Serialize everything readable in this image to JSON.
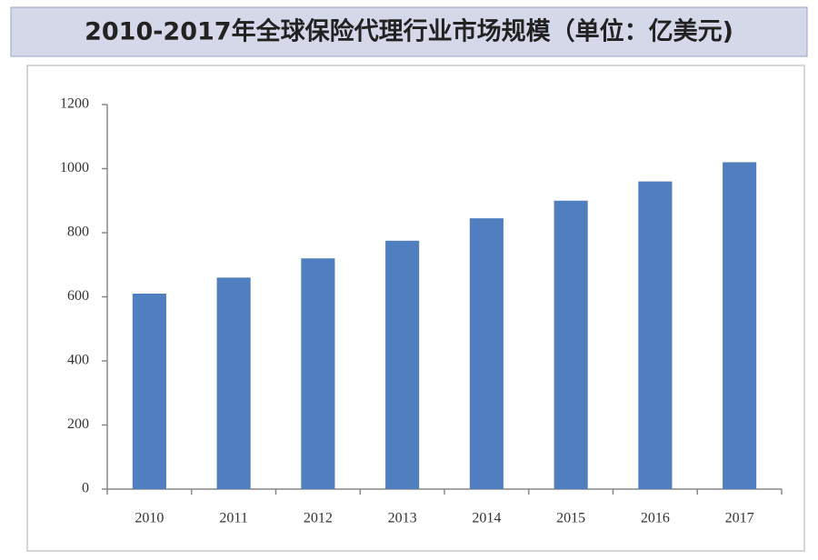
{
  "chart_data": {
    "type": "bar",
    "title": "2010-2017年全球保险代理行业市场规模（单位：亿美元)",
    "categories": [
      "2010",
      "2011",
      "2012",
      "2013",
      "2014",
      "2015",
      "2016",
      "2017"
    ],
    "values": [
      610,
      660,
      720,
      775,
      845,
      900,
      960,
      1020
    ],
    "color": "#4f7fbf",
    "ylim": [
      0,
      1200
    ],
    "yticks": [
      0,
      200,
      400,
      600,
      800,
      1000,
      1200
    ],
    "grid": false
  }
}
